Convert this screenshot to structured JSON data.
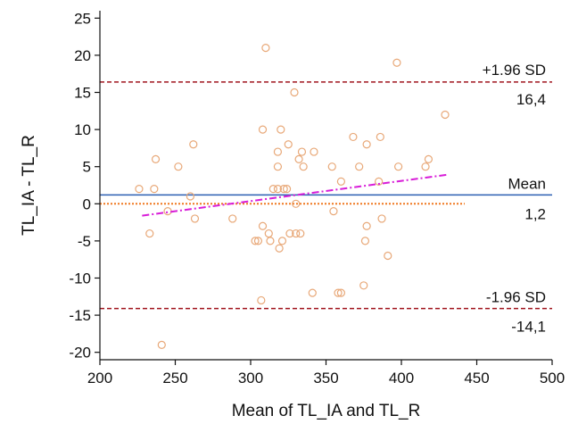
{
  "chart_data": {
    "type": "scatter",
    "title": "",
    "xlabel": "Mean of TL_IA and TL_R",
    "ylabel": "TL_IA - TL_R",
    "xlim": [
      200,
      500
    ],
    "ylim": [
      -21,
      26
    ],
    "xticks": [
      200,
      250,
      300,
      350,
      400,
      450,
      500
    ],
    "yticks": [
      -20,
      -15,
      -10,
      -5,
      0,
      5,
      10,
      15,
      20,
      25
    ],
    "grid": false,
    "colors": {
      "points": "#e8a878",
      "mean_line": "#2b5fb3",
      "sd_lines": "#a0141e",
      "zero_line": "#f07820",
      "regression_line": "#d81ed8"
    },
    "reference_lines": {
      "mean": {
        "value": 1.2,
        "label": "Mean",
        "value_text": "1,2"
      },
      "upper": {
        "value": 16.4,
        "label": "+1.96 SD",
        "value_text": "16,4"
      },
      "lower": {
        "value": -14.1,
        "label": "-1.96 SD",
        "value_text": "-14,1"
      },
      "zero": {
        "value": 0,
        "x_range": [
          200,
          442
        ]
      }
    },
    "regression": {
      "x": [
        228,
        430
      ],
      "y": [
        -1.6,
        3.9
      ]
    },
    "points": [
      {
        "x": 226,
        "y": 2
      },
      {
        "x": 233,
        "y": -4
      },
      {
        "x": 236,
        "y": 2
      },
      {
        "x": 237,
        "y": 6
      },
      {
        "x": 241,
        "y": -19
      },
      {
        "x": 245,
        "y": -1
      },
      {
        "x": 252,
        "y": 5
      },
      {
        "x": 260,
        "y": 1
      },
      {
        "x": 262,
        "y": 8
      },
      {
        "x": 263,
        "y": -2
      },
      {
        "x": 288,
        "y": -2
      },
      {
        "x": 303,
        "y": -5
      },
      {
        "x": 305,
        "y": -5
      },
      {
        "x": 307,
        "y": -13
      },
      {
        "x": 308,
        "y": -3
      },
      {
        "x": 308,
        "y": 10
      },
      {
        "x": 310,
        "y": 21
      },
      {
        "x": 312,
        "y": -4
      },
      {
        "x": 313,
        "y": -5
      },
      {
        "x": 315,
        "y": 2
      },
      {
        "x": 318,
        "y": 2
      },
      {
        "x": 318,
        "y": 7
      },
      {
        "x": 318,
        "y": 5
      },
      {
        "x": 319,
        "y": -6
      },
      {
        "x": 320,
        "y": 10
      },
      {
        "x": 321,
        "y": -5
      },
      {
        "x": 322,
        "y": 2
      },
      {
        "x": 324,
        "y": 2
      },
      {
        "x": 325,
        "y": 8
      },
      {
        "x": 326,
        "y": -4
      },
      {
        "x": 329,
        "y": 15
      },
      {
        "x": 330,
        "y": 0
      },
      {
        "x": 330,
        "y": -4
      },
      {
        "x": 332,
        "y": 6
      },
      {
        "x": 333,
        "y": -4
      },
      {
        "x": 334,
        "y": 7
      },
      {
        "x": 335,
        "y": 5
      },
      {
        "x": 341,
        "y": -12
      },
      {
        "x": 342,
        "y": 7
      },
      {
        "x": 354,
        "y": 5
      },
      {
        "x": 355,
        "y": -1
      },
      {
        "x": 358,
        "y": -12
      },
      {
        "x": 360,
        "y": -12
      },
      {
        "x": 360,
        "y": 3
      },
      {
        "x": 368,
        "y": 9
      },
      {
        "x": 372,
        "y": 5
      },
      {
        "x": 375,
        "y": -11
      },
      {
        "x": 376,
        "y": -5
      },
      {
        "x": 377,
        "y": 8
      },
      {
        "x": 377,
        "y": -3
      },
      {
        "x": 385,
        "y": 3
      },
      {
        "x": 386,
        "y": 9
      },
      {
        "x": 387,
        "y": -2
      },
      {
        "x": 391,
        "y": -7
      },
      {
        "x": 397,
        "y": 19
      },
      {
        "x": 398,
        "y": 5
      },
      {
        "x": 416,
        "y": 5
      },
      {
        "x": 418,
        "y": 6
      },
      {
        "x": 429,
        "y": 12
      }
    ]
  }
}
